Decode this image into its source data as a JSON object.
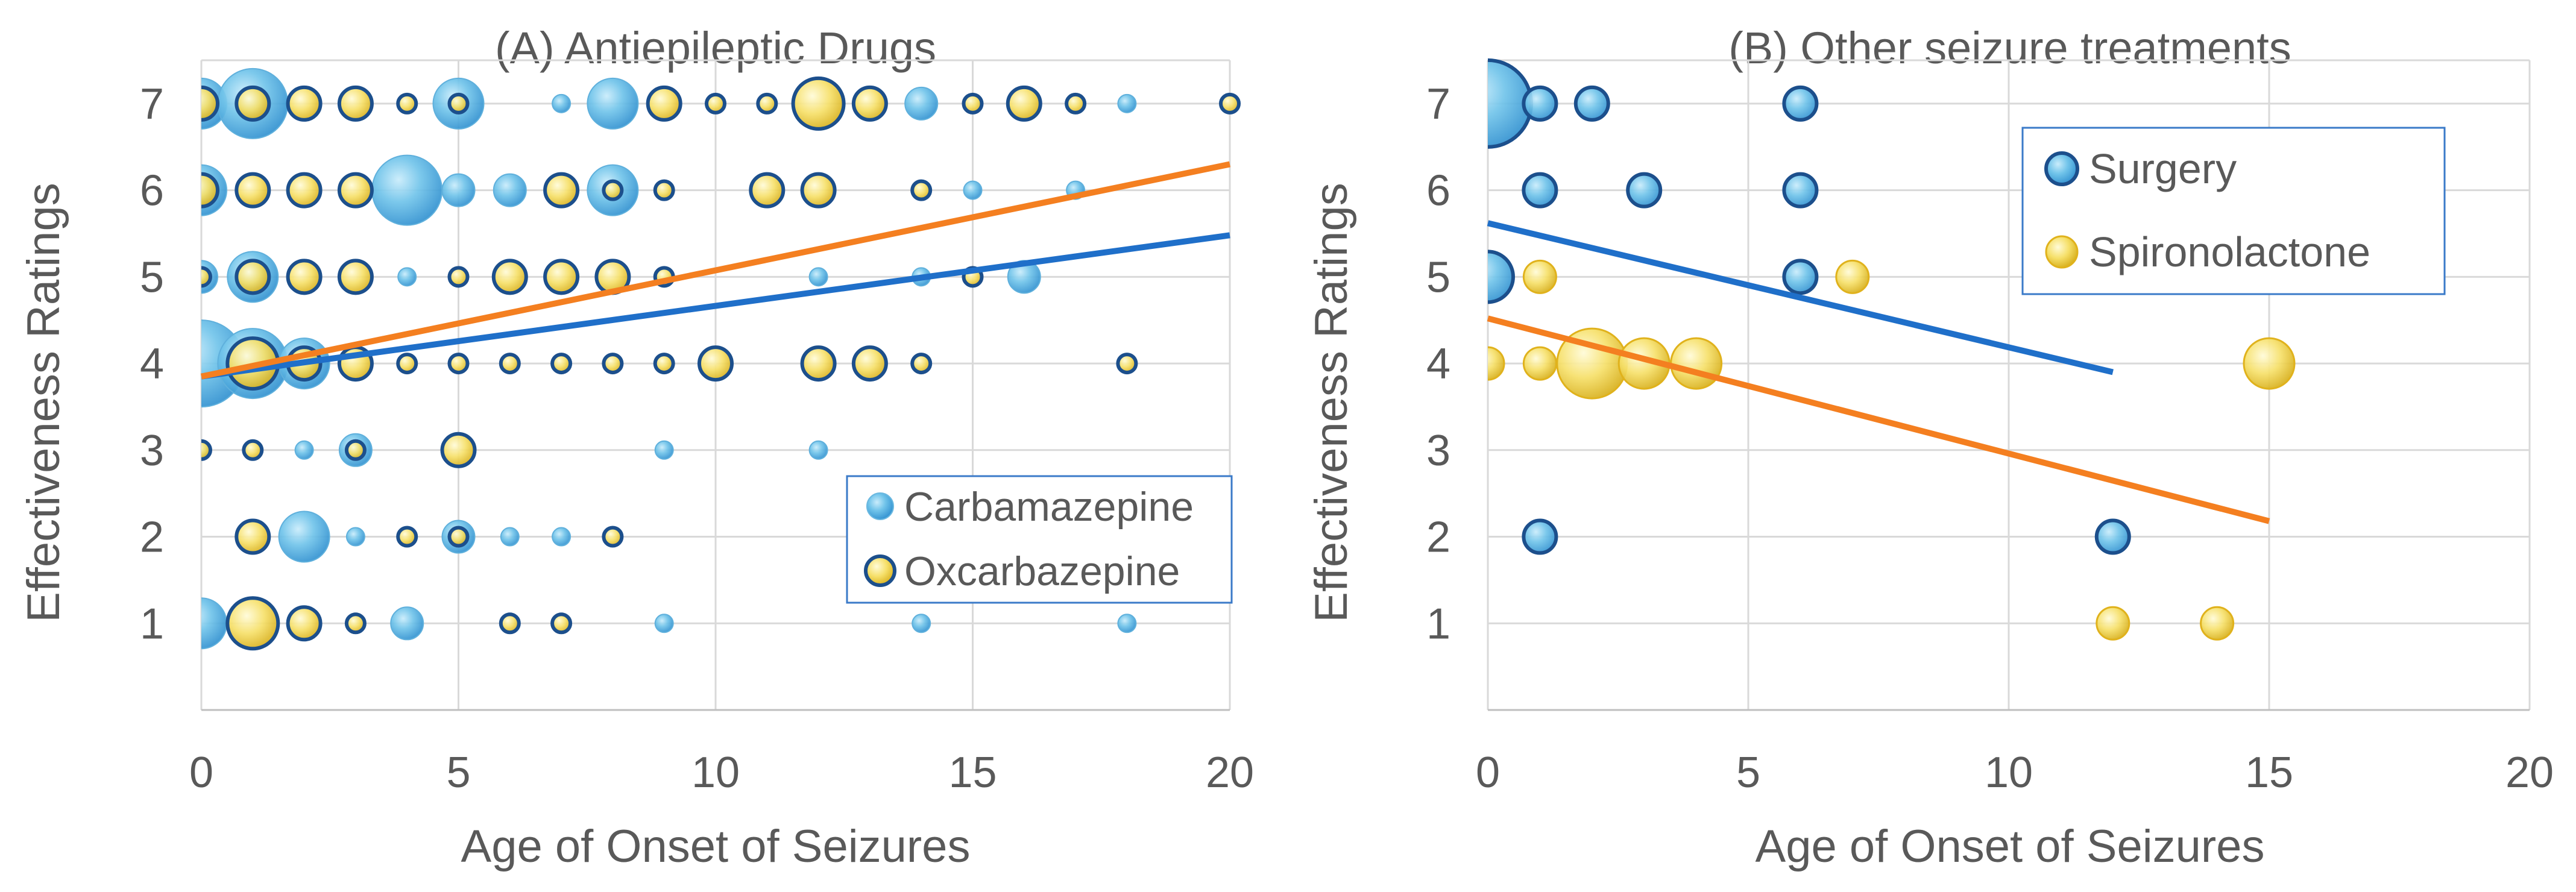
{
  "chart_data": [
    {
      "type": "bubble-scatter",
      "title": "(A) Antiepileptic Drugs",
      "xlabel": "Age of Onset of Seizures",
      "ylabel": "Effectiveness Ratings",
      "xlim": [
        0,
        20
      ],
      "ylim": [
        0,
        7.5
      ],
      "xticks": [
        "0",
        "5",
        "10",
        "15",
        "20"
      ],
      "yticks": [
        "1",
        "2",
        "3",
        "4",
        "5",
        "6",
        "7"
      ],
      "grid": true,
      "legend": "bottom-right",
      "series": [
        {
          "name": "Carbamazepine",
          "style": "blue",
          "trend": {
            "x": [
              0,
              20
            ],
            "y": [
              3.85,
              5.48
            ],
            "color": "#1f6fc9"
          },
          "points": [
            [
              0,
              7,
              3
            ],
            [
              1,
              7,
              4
            ],
            [
              5,
              7,
              3
            ],
            [
              7,
              7,
              1
            ],
            [
              8,
              7,
              3
            ],
            [
              14,
              7,
              2
            ],
            [
              18,
              7,
              1
            ],
            [
              0,
              6,
              3
            ],
            [
              4,
              6,
              4
            ],
            [
              5,
              6,
              2
            ],
            [
              6,
              6,
              2
            ],
            [
              8,
              6,
              3
            ],
            [
              15,
              6,
              1
            ],
            [
              17,
              6,
              1
            ],
            [
              0,
              5,
              2
            ],
            [
              1,
              5,
              3
            ],
            [
              4,
              5,
              1
            ],
            [
              16,
              5,
              2
            ],
            [
              12,
              5,
              1
            ],
            [
              14,
              5,
              1
            ],
            [
              0,
              4,
              5
            ],
            [
              1,
              4,
              4
            ],
            [
              2,
              4,
              3
            ],
            [
              0,
              3,
              1
            ],
            [
              2,
              3,
              1
            ],
            [
              3,
              3,
              2
            ],
            [
              9,
              3,
              1
            ],
            [
              12,
              3,
              1
            ],
            [
              2,
              2,
              3
            ],
            [
              3,
              2,
              1
            ],
            [
              5,
              2,
              2
            ],
            [
              6,
              2,
              1
            ],
            [
              7,
              2,
              1
            ],
            [
              0,
              1,
              3
            ],
            [
              4,
              1,
              2
            ],
            [
              9,
              1,
              1
            ],
            [
              14,
              1,
              1
            ],
            [
              18,
              1,
              1
            ]
          ]
        },
        {
          "name": "Oxcarbazepine",
          "style": "gold",
          "trend": {
            "x": [
              0,
              20
            ],
            "y": [
              3.85,
              6.3
            ],
            "color": "#f47f20"
          },
          "points": [
            [
              0,
              7,
              2
            ],
            [
              1,
              7,
              2
            ],
            [
              2,
              7,
              2
            ],
            [
              3,
              7,
              2
            ],
            [
              4,
              7,
              1
            ],
            [
              5,
              7,
              1
            ],
            [
              9,
              7,
              2
            ],
            [
              10,
              7,
              1
            ],
            [
              11,
              7,
              1
            ],
            [
              12,
              7,
              3
            ],
            [
              13,
              7,
              2
            ],
            [
              15,
              7,
              1
            ],
            [
              16,
              7,
              2
            ],
            [
              17,
              7,
              1
            ],
            [
              20,
              7,
              1
            ],
            [
              0,
              6,
              2
            ],
            [
              1,
              6,
              2
            ],
            [
              2,
              6,
              2
            ],
            [
              3,
              6,
              2
            ],
            [
              7,
              6,
              2
            ],
            [
              8,
              6,
              1
            ],
            [
              9,
              6,
              1
            ],
            [
              11,
              6,
              2
            ],
            [
              12,
              6,
              2
            ],
            [
              14,
              6,
              1
            ],
            [
              0,
              5,
              1
            ],
            [
              1,
              5,
              2
            ],
            [
              2,
              5,
              2
            ],
            [
              3,
              5,
              2
            ],
            [
              5,
              5,
              1
            ],
            [
              6,
              5,
              2
            ],
            [
              7,
              5,
              2
            ],
            [
              8,
              5,
              2
            ],
            [
              9,
              5,
              1
            ],
            [
              15,
              5,
              1
            ],
            [
              1,
              4,
              3
            ],
            [
              2,
              4,
              2
            ],
            [
              3,
              4,
              2
            ],
            [
              4,
              4,
              1
            ],
            [
              5,
              4,
              1
            ],
            [
              6,
              4,
              1
            ],
            [
              7,
              4,
              1
            ],
            [
              8,
              4,
              1
            ],
            [
              9,
              4,
              1
            ],
            [
              10,
              4,
              2
            ],
            [
              12,
              4,
              2
            ],
            [
              13,
              4,
              2
            ],
            [
              14,
              4,
              1
            ],
            [
              18,
              4,
              1
            ],
            [
              0,
              3,
              1
            ],
            [
              1,
              3,
              1
            ],
            [
              3,
              3,
              1
            ],
            [
              5,
              3,
              2
            ],
            [
              1,
              2,
              2
            ],
            [
              4,
              2,
              1
            ],
            [
              5,
              2,
              1
            ],
            [
              8,
              2,
              1
            ],
            [
              1,
              1,
              3
            ],
            [
              2,
              1,
              2
            ],
            [
              3,
              1,
              1
            ],
            [
              6,
              1,
              1
            ],
            [
              7,
              1,
              1
            ]
          ]
        }
      ]
    },
    {
      "type": "bubble-scatter",
      "title": "(B) Other seizure treatments",
      "xlabel": "Age of Onset of Seizures",
      "ylabel": "Effectiveness Ratings",
      "xlim": [
        0,
        20
      ],
      "ylim": [
        0,
        7.5
      ],
      "xticks": [
        "0",
        "5",
        "10",
        "15",
        "20"
      ],
      "yticks": [
        "1",
        "2",
        "3",
        "4",
        "5",
        "6",
        "7"
      ],
      "grid": true,
      "legend": "top-right",
      "series": [
        {
          "name": "Surgery",
          "style": "blue",
          "trend": {
            "x": [
              0,
              12
            ],
            "y": [
              5.62,
              3.9
            ],
            "color": "#1f6fc9"
          },
          "points": [
            [
              0,
              7,
              5
            ],
            [
              1,
              7,
              2
            ],
            [
              2,
              7,
              2
            ],
            [
              6,
              7,
              2
            ],
            [
              1,
              6,
              2
            ],
            [
              3,
              6,
              2
            ],
            [
              6,
              6,
              2
            ],
            [
              0,
              5,
              3
            ],
            [
              6,
              5,
              2
            ],
            [
              1,
              2,
              2
            ],
            [
              12,
              2,
              2
            ]
          ]
        },
        {
          "name": "Spironolactone",
          "style": "gold",
          "trend": {
            "x": [
              0,
              15
            ],
            "y": [
              4.52,
              2.18
            ],
            "color": "#f47f20"
          },
          "points": [
            [
              1,
              5,
              2
            ],
            [
              7,
              5,
              2
            ],
            [
              0,
              4,
              2
            ],
            [
              1,
              4,
              2
            ],
            [
              2,
              4,
              4
            ],
            [
              3,
              4,
              3
            ],
            [
              4,
              4,
              3
            ],
            [
              15,
              4,
              3
            ],
            [
              12,
              1,
              2
            ],
            [
              14,
              1,
              2
            ]
          ]
        }
      ]
    }
  ]
}
